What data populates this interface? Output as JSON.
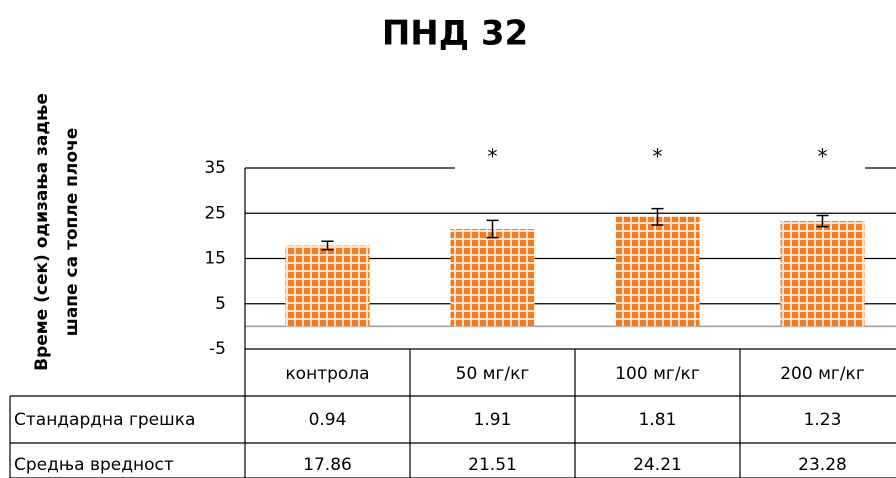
{
  "chart_data": {
    "type": "bar",
    "title": "ПНД 32",
    "y_label": [
      "Време (сек) одизања задње",
      "шапе са топле плоче"
    ],
    "categories": [
      "контрола",
      "50 мг/кг",
      "100 мг/кг",
      "200 мг/кг"
    ],
    "series": [
      {
        "name": "Средња вредност",
        "color": "#f47b20",
        "values": [
          17.86,
          21.51,
          24.21,
          23.28
        ]
      }
    ],
    "errors": {
      "name": "Стандардна грешка",
      "values": [
        0.94,
        1.91,
        1.81,
        1.23
      ]
    },
    "annotations": [
      null,
      "*",
      "*",
      "*"
    ],
    "ylim": [
      -5,
      35
    ],
    "yticks": [
      -5,
      5,
      15,
      25,
      35
    ],
    "grid": true
  }
}
